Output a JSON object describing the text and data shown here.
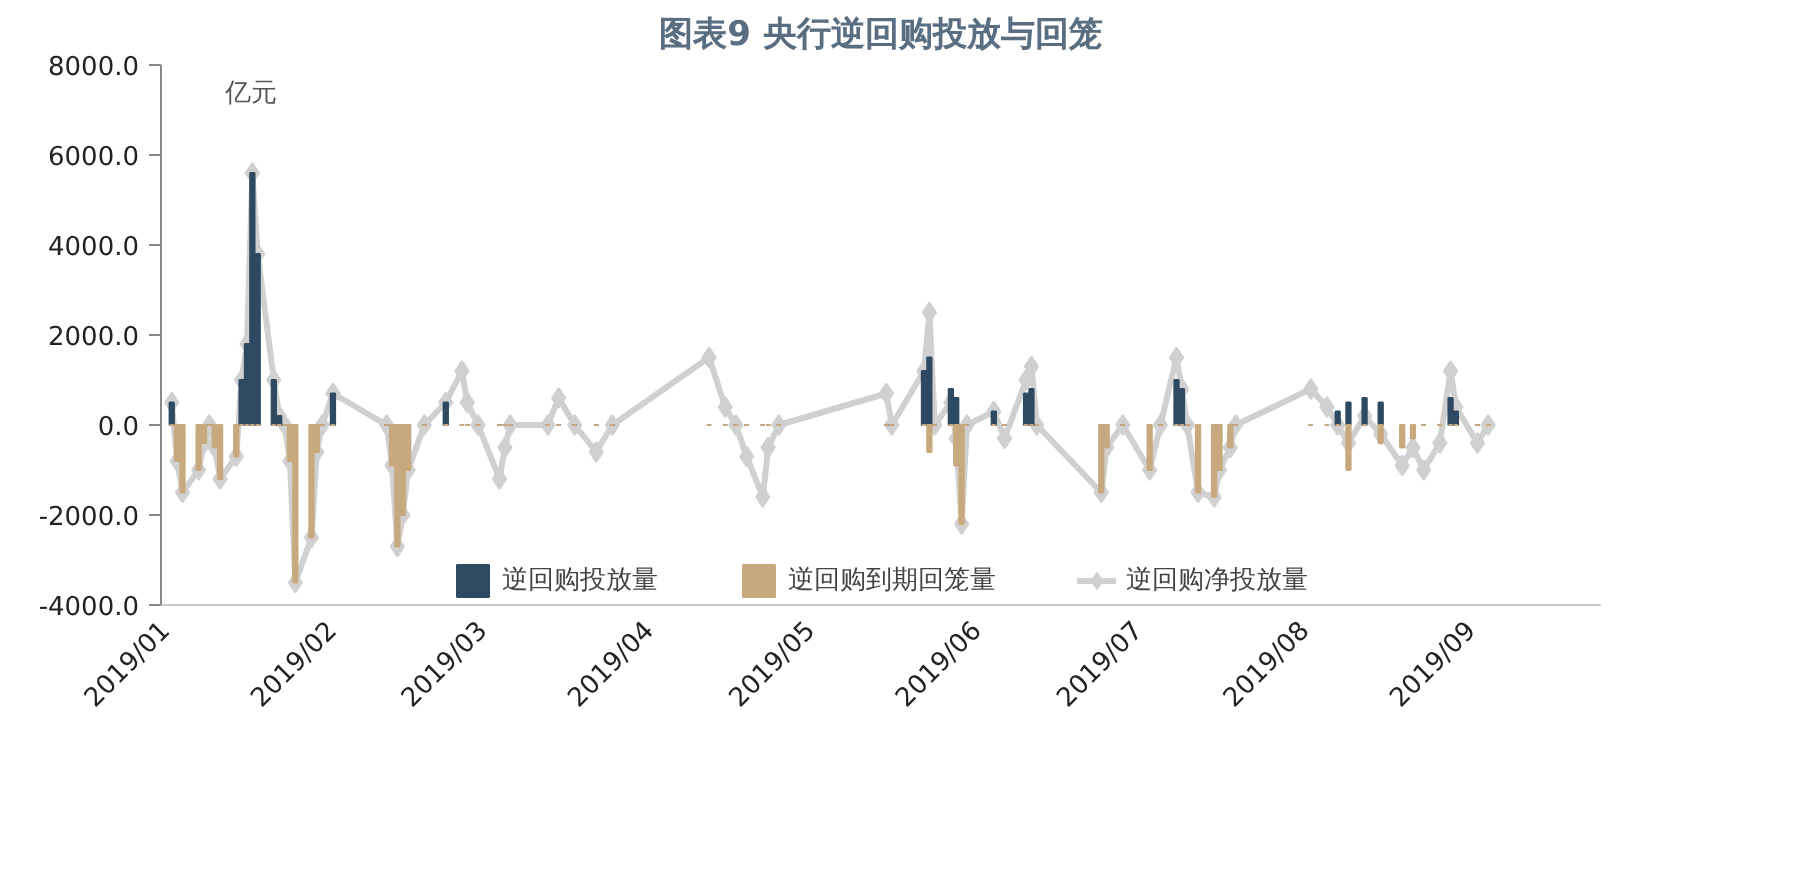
{
  "chart_data": {
    "type": "bar",
    "title": "图表9 央行逆回购投放与回笼",
    "ylabel": "亿元",
    "x": [
      "2019-01-02",
      "2019-01-03",
      "2019-01-04",
      "2019-01-07",
      "2019-01-08",
      "2019-01-09",
      "2019-01-10",
      "2019-01-11",
      "2019-01-14",
      "2019-01-15",
      "2019-01-16",
      "2019-01-17",
      "2019-01-18",
      "2019-01-21",
      "2019-01-22",
      "2019-01-23",
      "2019-01-24",
      "2019-01-25",
      "2019-01-28",
      "2019-01-29",
      "2019-01-30",
      "2019-02-01",
      "2019-02-11",
      "2019-02-12",
      "2019-02-13",
      "2019-02-14",
      "2019-02-15",
      "2019-02-18",
      "2019-02-22",
      "2019-02-25",
      "2019-02-26",
      "2019-02-28",
      "2019-03-04",
      "2019-03-05",
      "2019-03-06",
      "2019-03-13",
      "2019-03-15",
      "2019-03-18",
      "2019-03-22",
      "2019-03-25",
      "2019-04-12",
      "2019-04-15",
      "2019-04-17",
      "2019-04-19",
      "2019-04-22",
      "2019-04-23",
      "2019-04-25",
      "2019-05-15",
      "2019-05-16",
      "2019-05-22",
      "2019-05-23",
      "2019-05-24",
      "2019-05-27",
      "2019-05-28",
      "2019-05-29",
      "2019-05-30",
      "2019-06-04",
      "2019-06-06",
      "2019-06-10",
      "2019-06-11",
      "2019-06-12",
      "2019-06-24",
      "2019-06-25",
      "2019-06-28",
      "2019-07-03",
      "2019-07-05",
      "2019-07-08",
      "2019-07-09",
      "2019-07-10",
      "2019-07-12",
      "2019-07-15",
      "2019-07-16",
      "2019-07-18",
      "2019-07-19",
      "2019-08-02",
      "2019-08-05",
      "2019-08-07",
      "2019-08-09",
      "2019-08-12",
      "2019-08-15",
      "2019-08-19",
      "2019-08-21",
      "2019-08-23",
      "2019-08-26",
      "2019-08-28",
      "2019-08-29",
      "2019-09-02",
      "2019-09-04"
    ],
    "series": [
      {
        "name": "逆回购投放量",
        "color": "#2e4a62",
        "values": [
          500,
          0,
          0,
          0,
          0,
          0,
          0,
          0,
          0,
          1000,
          1800,
          5600,
          3800,
          1000,
          200,
          0,
          0,
          0,
          0,
          0,
          0,
          700,
          0,
          0,
          0,
          0,
          0,
          0,
          500,
          0,
          0,
          0,
          0,
          0,
          0,
          0,
          0,
          0,
          0,
          0,
          0,
          0,
          0,
          0,
          0,
          0,
          0,
          0,
          0,
          1200,
          1500,
          0,
          800,
          600,
          0,
          0,
          300,
          0,
          700,
          800,
          0,
          0,
          0,
          0,
          0,
          0,
          1000,
          800,
          0,
          0,
          0,
          0,
          0,
          0,
          0,
          0,
          300,
          500,
          600,
          500,
          0,
          0,
          0,
          0,
          600,
          300,
          0,
          0
        ]
      },
      {
        "name": "逆回购到期回笼量",
        "color": "#c8a97e",
        "values": [
          0,
          -800,
          -1500,
          -1000,
          -400,
          0,
          -500,
          -1200,
          -700,
          0,
          0,
          0,
          0,
          0,
          0,
          0,
          -800,
          -3500,
          -2500,
          -600,
          0,
          0,
          0,
          -900,
          -2700,
          -2000,
          -1000,
          0,
          0,
          0,
          0,
          0,
          0,
          0,
          0,
          0,
          0,
          0,
          0,
          0,
          0,
          0,
          0,
          0,
          0,
          0,
          0,
          0,
          0,
          0,
          -600,
          0,
          0,
          -900,
          -2200,
          0,
          0,
          0,
          0,
          0,
          0,
          -1500,
          -500,
          0,
          -1000,
          0,
          0,
          0,
          0,
          -1500,
          -1600,
          -1000,
          -500,
          0,
          0,
          0,
          0,
          -1000,
          0,
          -400,
          -500,
          -300,
          0,
          0,
          0,
          0,
          0,
          0
        ]
      },
      {
        "name": "逆回购净投放量",
        "type": "line",
        "color": "#d0d0d0",
        "marker": "diamond",
        "values": [
          500,
          -800,
          -1500,
          -1000,
          -400,
          0,
          -500,
          -1200,
          -700,
          1000,
          1800,
          5600,
          3800,
          1000,
          200,
          0,
          -800,
          -3500,
          -2500,
          -600,
          0,
          700,
          0,
          -900,
          -2700,
          -2000,
          -1000,
          0,
          500,
          1200,
          500,
          0,
          -1200,
          -500,
          0,
          0,
          600,
          0,
          -600,
          0,
          1500,
          400,
          0,
          -700,
          -1600,
          -500,
          0,
          700,
          0,
          1200,
          2500,
          0,
          500,
          -300,
          -2200,
          0,
          300,
          -300,
          1000,
          1300,
          0,
          -1500,
          -500,
          0,
          -1000,
          0,
          1500,
          800,
          0,
          -1500,
          -1600,
          -1000,
          -500,
          0,
          800,
          400,
          0,
          -400,
          200,
          -200,
          -900,
          -500,
          -1000,
          -400,
          1200,
          400,
          -400,
          0
        ]
      }
    ],
    "xlim": [
      "2018-12-31",
      "2019-09-25"
    ],
    "xticks": [
      {
        "value": "2019-01-01",
        "label": "2019/01"
      },
      {
        "value": "2019-02-01",
        "label": "2019/02"
      },
      {
        "value": "2019-03-01",
        "label": "2019/03"
      },
      {
        "value": "2019-04-01",
        "label": "2019/04"
      },
      {
        "value": "2019-05-01",
        "label": "2019/05"
      },
      {
        "value": "2019-06-01",
        "label": "2019/06"
      },
      {
        "value": "2019-07-01",
        "label": "2019/07"
      },
      {
        "value": "2019-08-01",
        "label": "2019/08"
      },
      {
        "value": "2019-09-01",
        "label": "2019/09"
      }
    ],
    "ylim": [
      -4000,
      8000
    ],
    "yticks": [
      {
        "value": -4000,
        "label": "-4000.0"
      },
      {
        "value": -2000,
        "label": "-2000.0"
      },
      {
        "value": 0,
        "label": "0.0"
      },
      {
        "value": 2000,
        "label": "2000.0"
      },
      {
        "value": 4000,
        "label": "4000.0"
      },
      {
        "value": 6000,
        "label": "6000.0"
      },
      {
        "value": 8000,
        "label": "8000.0"
      }
    ],
    "grid": false,
    "legend": "bottom"
  }
}
